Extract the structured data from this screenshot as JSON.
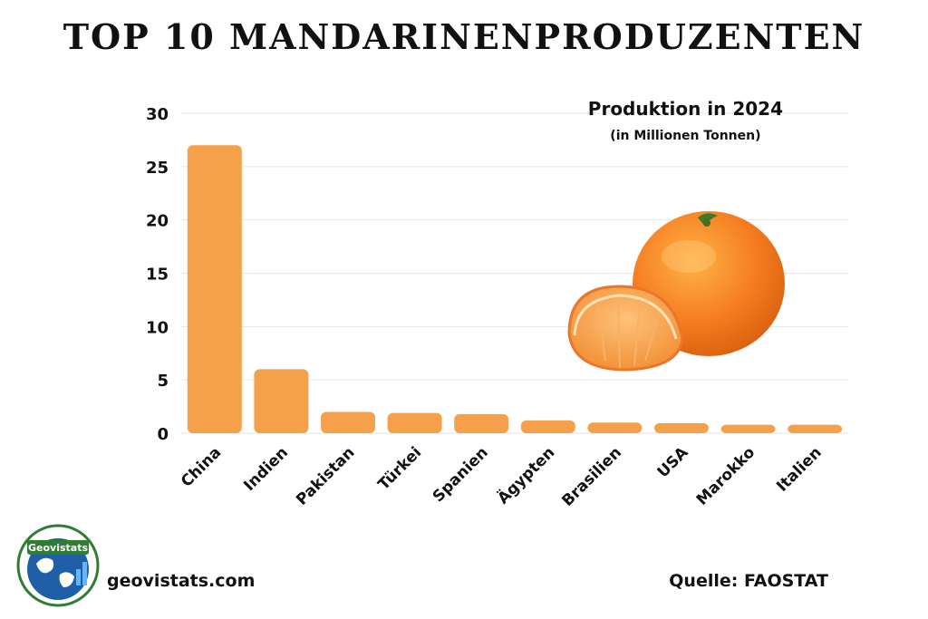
{
  "header": {
    "title": "TOP 10 MANDARINENPRODUZENTEN"
  },
  "chart_data": {
    "type": "bar",
    "title": "Produktion in 2024",
    "subtitle": "(in Millionen Tonnen)",
    "categories": [
      "China",
      "Indien",
      "Pakistan",
      "Türkei",
      "Spanien",
      "Ägypten",
      "Brasilien",
      "USA",
      "Marokko",
      "Italien"
    ],
    "values": [
      27.0,
      6.0,
      2.0,
      1.9,
      1.8,
      1.2,
      1.0,
      0.95,
      0.8,
      0.8
    ],
    "ylim": [
      0,
      30
    ],
    "yticks": [
      "0",
      "5",
      "10",
      "15",
      "20",
      "25",
      "30"
    ],
    "xlabel": "",
    "ylabel": "",
    "grid": true,
    "bar_color": "#F5A04A",
    "grid_color": "#E6E6E6"
  },
  "footer": {
    "site": "geovistats.com",
    "source": "Quelle: FAOSTAT"
  },
  "logo": {
    "text": "Geovistats"
  },
  "illustration": {
    "icon": "mandarin-orange-icon"
  }
}
